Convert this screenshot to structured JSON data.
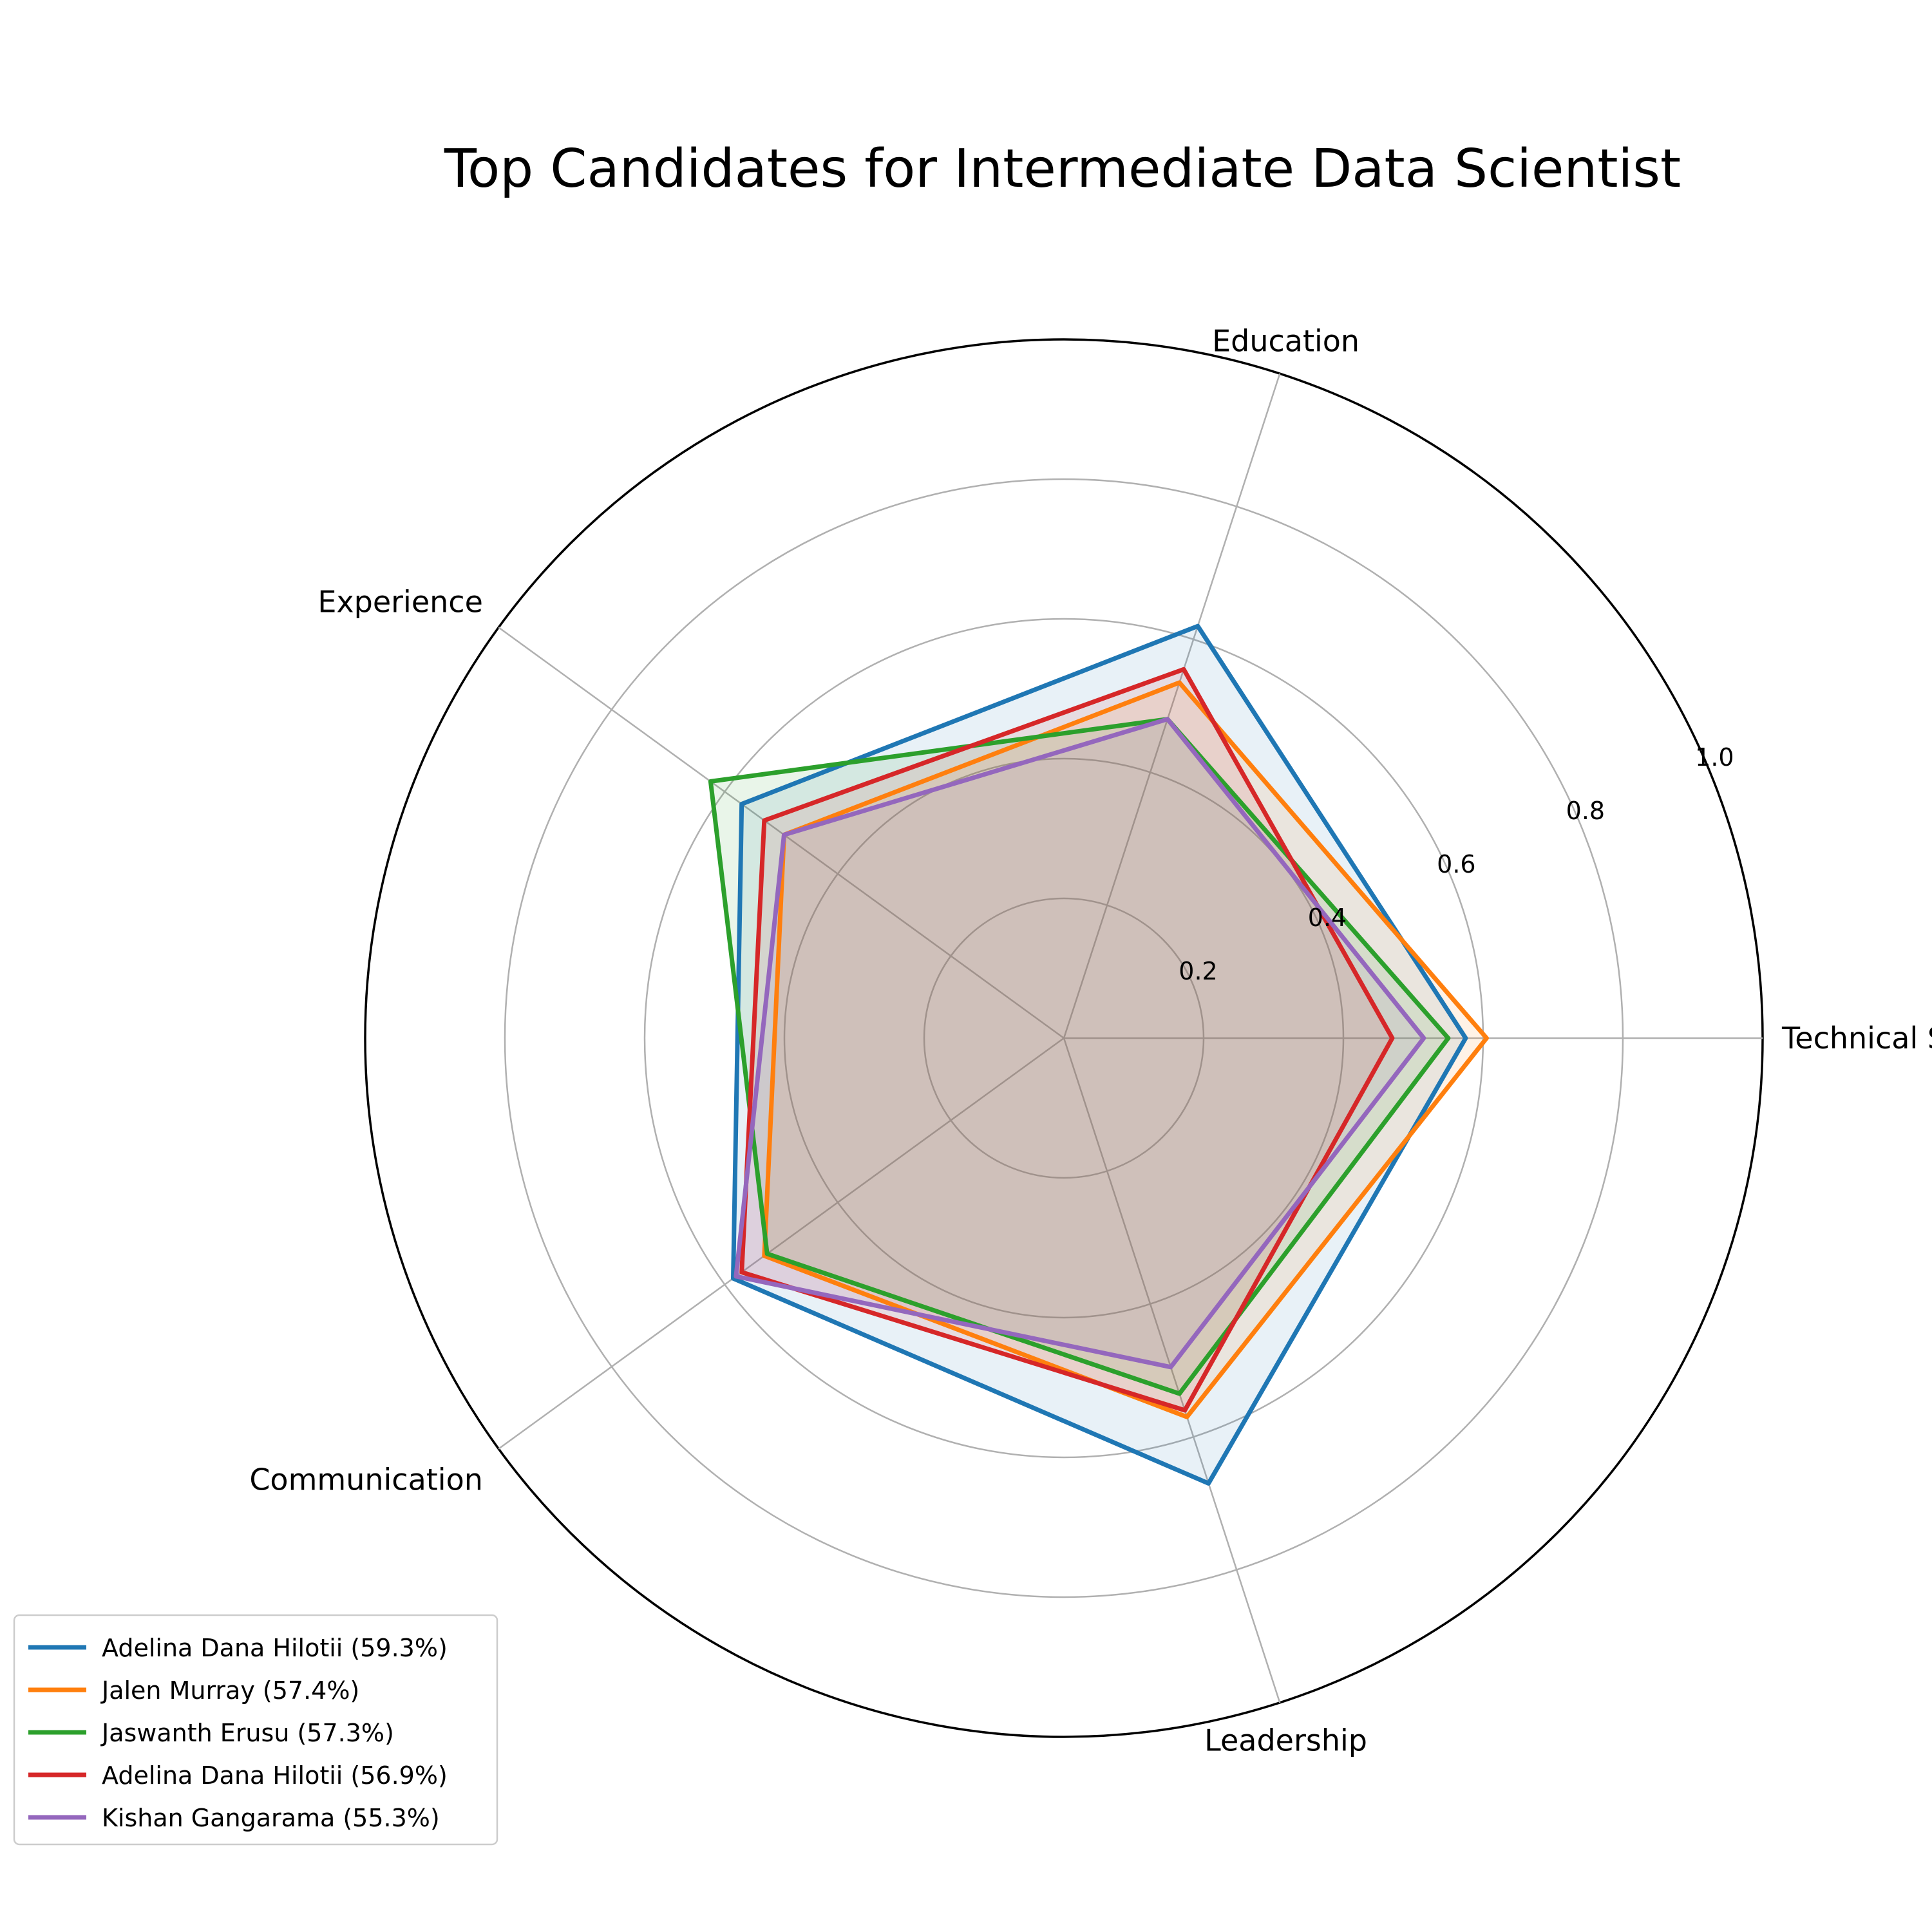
{
  "chart_data": {
    "type": "radar",
    "title": "Top Candidates for Intermediate Data Scientist",
    "axes": [
      "Technical Skills",
      "Education",
      "Experience",
      "Communication",
      "Leadership"
    ],
    "rlim": [
      0,
      1.0
    ],
    "rticks": [
      0.2,
      0.4,
      0.6,
      0.8,
      1.0
    ],
    "rtick_labels": [
      "0.2",
      "0.4",
      "0.6",
      "0.8",
      "1.0"
    ],
    "grid": true,
    "legend_position": "lower-left",
    "series": [
      {
        "name": "Adelina Dana Hilotii (59.3%)",
        "color": "#1f77b4",
        "values": [
          0.575,
          0.62,
          0.57,
          0.585,
          0.67
        ]
      },
      {
        "name": "Jalen Murray (57.4%)",
        "color": "#ff7f0e",
        "values": [
          0.605,
          0.535,
          0.495,
          0.53,
          0.57
        ]
      },
      {
        "name": "Jaswanth Erusu (57.3%)",
        "color": "#2ca02c",
        "values": [
          0.55,
          0.48,
          0.625,
          0.525,
          0.535
        ]
      },
      {
        "name": "Adelina Dana Hilotii (56.9%)",
        "color": "#d62728",
        "values": [
          0.47,
          0.555,
          0.53,
          0.57,
          0.56
        ]
      },
      {
        "name": "Kishan Gangarama (55.3%)",
        "color": "#9467bd",
        "values": [
          0.515,
          0.48,
          0.495,
          0.58,
          0.495
        ]
      }
    ]
  }
}
